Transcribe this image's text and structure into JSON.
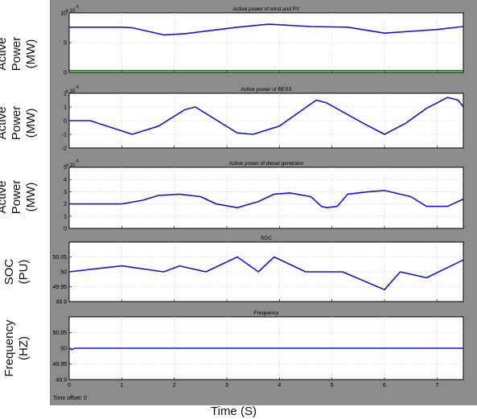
{
  "figure": {
    "xlabel": "Time (S)",
    "time_offset": "Time offset:  0"
  },
  "colors": {
    "panel_bg": "#ffffff",
    "scope_bg": "#8c8c8c",
    "line": "#1414d4",
    "line_green": "#008800",
    "grid": "#b8b8b8"
  },
  "chart_data": [
    {
      "type": "line",
      "title": "Active power of wind and PV",
      "ylabel": [
        "Active",
        "Power",
        "(MW)"
      ],
      "y_exponent": "6",
      "ylim": [
        0,
        10000000
      ],
      "yticks": [
        0,
        5000000,
        10000000
      ],
      "ytick_labels": [
        "0",
        "5",
        "10"
      ],
      "xlim": [
        0,
        7.5
      ],
      "grid": true,
      "series": [
        {
          "color": "blue",
          "x": [
            0,
            1,
            1.2,
            1.8,
            2.2,
            3.2,
            3.8,
            4.0,
            4.6,
            5.3,
            6.0,
            7.0,
            7.5
          ],
          "y": [
            7600000,
            7600000,
            7500000,
            6300000,
            6500000,
            7600000,
            8100000,
            8000000,
            7700000,
            7600000,
            6600000,
            7200000,
            7700000
          ]
        },
        {
          "color": "green",
          "x": [
            0,
            7.5
          ],
          "y": [
            300000,
            300000
          ]
        }
      ]
    },
    {
      "type": "line",
      "title": "Active power of BESS",
      "ylabel": [
        "Active",
        "Power",
        "(MW)"
      ],
      "y_exponent": "6",
      "ylim": [
        -2000000,
        2000000
      ],
      "yticks": [
        -2000000,
        -1000000,
        0,
        1000000,
        2000000
      ],
      "ytick_labels": [
        "-2",
        "-1",
        "0",
        "1",
        "2"
      ],
      "xlim": [
        0,
        7.5
      ],
      "grid": true,
      "series": [
        {
          "color": "blue",
          "x": [
            0,
            0.4,
            1.2,
            1.7,
            2.2,
            2.4,
            3.2,
            3.5,
            4.0,
            4.7,
            4.9,
            5.6,
            6.0,
            6.4,
            6.8,
            7.2,
            7.4,
            7.5
          ],
          "y": [
            0,
            0,
            -1000000,
            -400000,
            800000,
            1000000,
            -900000,
            -1000000,
            -400000,
            1500000,
            1300000,
            -200000,
            -1000000,
            -200000,
            900000,
            1700000,
            1500000,
            1000000
          ]
        }
      ]
    },
    {
      "type": "line",
      "title": "Active power of diesel generator",
      "ylabel": [
        "Active",
        "Power",
        "(MW)"
      ],
      "y_exponent": "6",
      "ylim": [
        0,
        5000000
      ],
      "yticks": [
        0,
        1000000,
        2000000,
        3000000,
        4000000,
        5000000
      ],
      "ytick_labels": [
        "0",
        "1",
        "2",
        "3",
        "4",
        "5"
      ],
      "xlim": [
        0,
        7.5
      ],
      "grid": true,
      "series": [
        {
          "color": "blue",
          "x": [
            0,
            1,
            1.4,
            1.7,
            2.1,
            2.5,
            2.8,
            3.2,
            3.6,
            3.9,
            4.2,
            4.6,
            4.8,
            4.9,
            5.1,
            5.3,
            5.7,
            6.0,
            6.5,
            6.8,
            7.2,
            7.5
          ],
          "y": [
            2000000,
            2000000,
            2300000,
            2700000,
            2800000,
            2600000,
            2000000,
            1700000,
            2200000,
            2800000,
            2900000,
            2600000,
            1800000,
            1700000,
            1800000,
            2800000,
            3000000,
            3100000,
            2600000,
            1800000,
            1800000,
            2400000
          ]
        }
      ]
    },
    {
      "type": "line",
      "title": "SOC",
      "ylabel": [
        "SOC",
        "(PU)"
      ],
      "ylim": [
        49.9,
        50.1
      ],
      "yticks": [
        49.9,
        49.95,
        50,
        50.05
      ],
      "ytick_labels": [
        "49.9",
        "49.95",
        "50",
        "50.05"
      ],
      "xlim": [
        0,
        7.5
      ],
      "grid": true,
      "series": [
        {
          "color": "blue",
          "x": [
            0,
            1,
            1.8,
            2.1,
            2.6,
            3.2,
            3.6,
            3.9,
            4.5,
            5.2,
            6.0,
            6.3,
            6.8,
            7.5
          ],
          "y": [
            50.0,
            50.02,
            50.0,
            50.02,
            50.0,
            50.05,
            50.0,
            50.05,
            50.0,
            50.0,
            49.94,
            50.0,
            49.98,
            50.04
          ]
        }
      ]
    },
    {
      "type": "line",
      "title": "Frequency",
      "ylabel": [
        "Frequency",
        "(HZ)"
      ],
      "ylim": [
        49.9,
        50.1
      ],
      "yticks": [
        49.9,
        49.95,
        50,
        50.05
      ],
      "ytick_labels": [
        "49.9",
        "49.95",
        "50",
        "50.05"
      ],
      "xlim": [
        0,
        7.5
      ],
      "xticks": [
        0,
        1,
        2,
        3,
        4,
        5,
        6,
        7
      ],
      "xtick_labels": [
        "0",
        "1",
        "2",
        "3",
        "4",
        "5",
        "6",
        "7"
      ],
      "grid": true,
      "series": [
        {
          "color": "blue",
          "x": [
            0,
            0.05,
            0.1,
            0.2,
            7.5
          ],
          "y": [
            50.0,
            49.995,
            50.0,
            50.0,
            50.0
          ]
        }
      ]
    }
  ]
}
